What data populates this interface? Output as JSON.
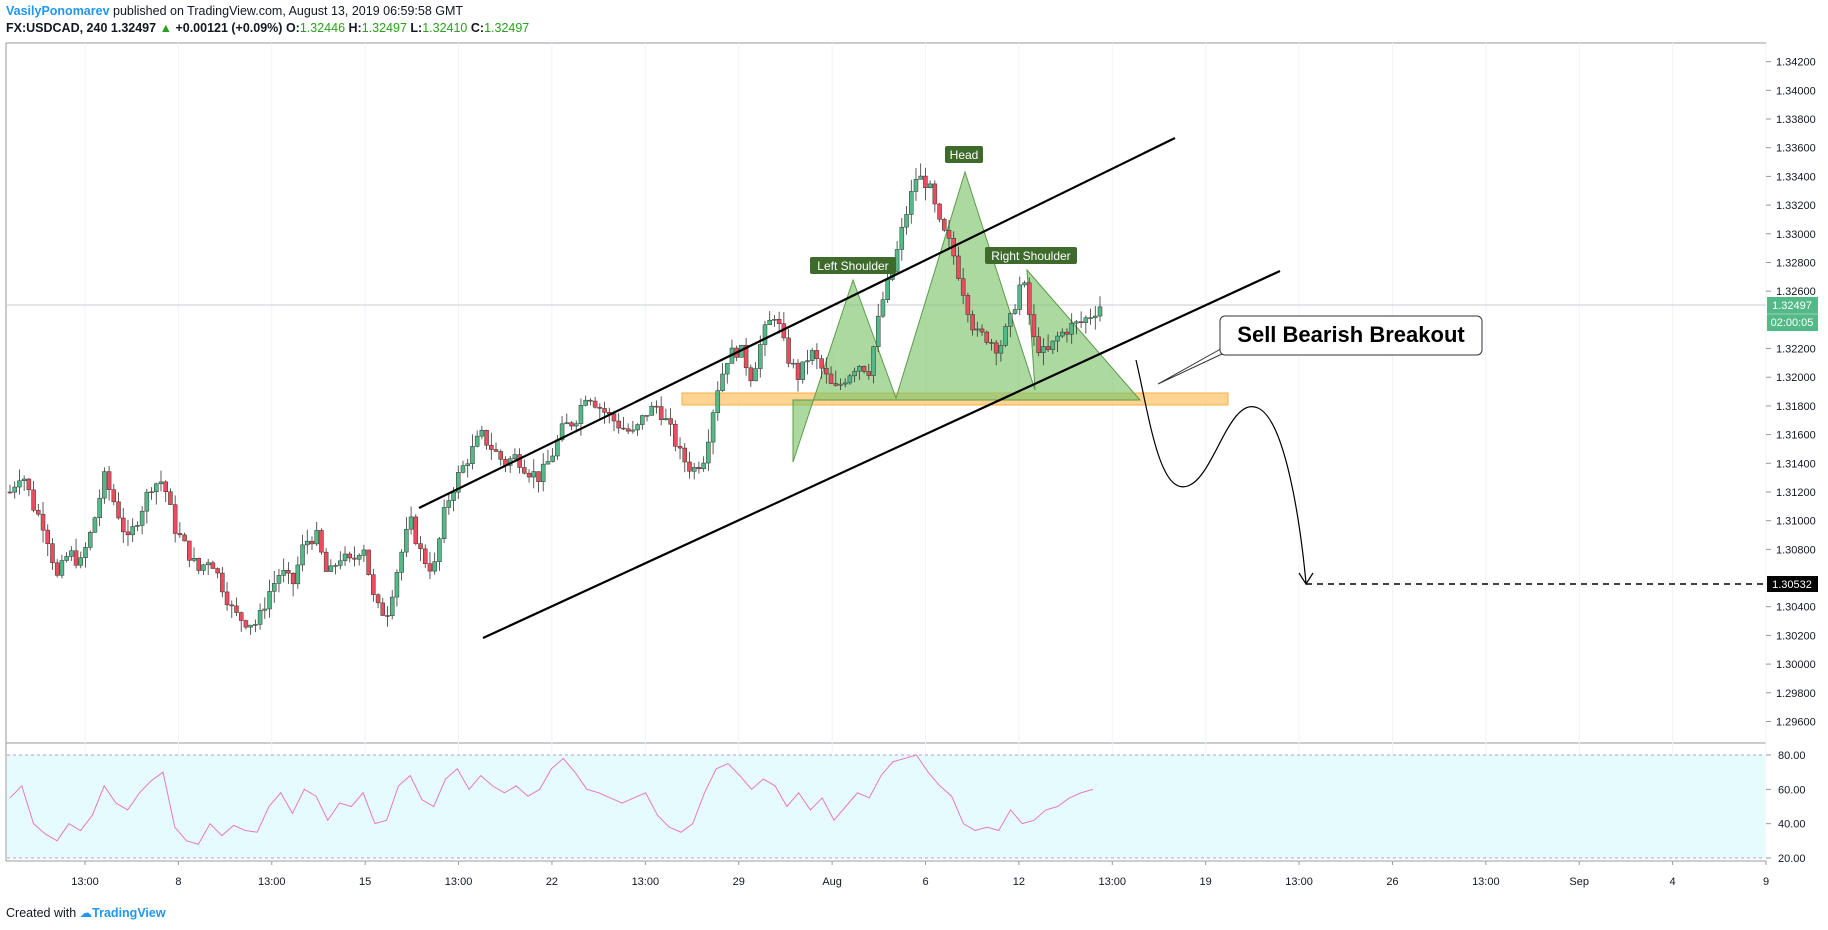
{
  "header": {
    "author": "VasilyPonomarev",
    "published_text": "published on TradingView.com, August 13, 2019 06:59:58 GMT",
    "symbol": "FX:USDCAD, 240",
    "last": "1.32497",
    "change": "+0.00121 (+0.09%)",
    "open_label": "O:",
    "open": "1.32446",
    "high_label": "H:",
    "high": "1.32497",
    "low_label": "L:",
    "low": "1.32410",
    "close_label": "C:",
    "close": "1.32497"
  },
  "footer": {
    "created_with": "Created with",
    "brand": "TradingView"
  },
  "colors": {
    "up": "#53b987",
    "down": "#eb4d5c",
    "pattern_fill": "#7ec46c",
    "zone_fill": "#ffcc80",
    "rsi_bg": "#e6fbfd",
    "rsi_line": "#e879c0",
    "price_label_bg": "#53b987",
    "target_label_bg": "#000000"
  },
  "chart_data": {
    "type": "candlestick",
    "instrument": "FX:USDCAD",
    "timeframe": "240",
    "x_labels": [
      "13:00",
      "8",
      "13:00",
      "15",
      "13:00",
      "22",
      "13:00",
      "29",
      "Aug",
      "6",
      "12",
      "13:00",
      "19",
      "13:00",
      "26",
      "13:00",
      "Sep",
      "4",
      "9"
    ],
    "y_labels": [
      "1.34200",
      "1.34000",
      "1.33800",
      "1.33600",
      "1.33400",
      "1.33200",
      "1.33000",
      "1.32800",
      "1.32600",
      "1.32200",
      "1.32000",
      "1.31800",
      "1.31600",
      "1.31400",
      "1.31200",
      "1.31000",
      "1.30800",
      "1.30400",
      "1.30200",
      "1.30000",
      "1.29800",
      "1.29600"
    ],
    "ylim": [
      1.2945,
      1.3433
    ],
    "current_price": "1.32497",
    "countdown": "02:00:05",
    "target_price": "1.30532",
    "annotations": {
      "head": "Head",
      "left_shoulder": "Left Shoulder",
      "right_shoulder": "Right Shoulder",
      "callout": "Sell Bearish Breakout"
    },
    "price_path": [
      [
        0,
        1.312
      ],
      [
        5,
        1.3135
      ],
      [
        10,
        1.311
      ],
      [
        15,
        1.3095
      ],
      [
        20,
        1.306
      ],
      [
        25,
        1.3078
      ],
      [
        30,
        1.307
      ],
      [
        35,
        1.3095
      ],
      [
        40,
        1.313
      ],
      [
        45,
        1.311
      ],
      [
        50,
        1.3085
      ],
      [
        55,
        1.3105
      ],
      [
        60,
        1.3125
      ],
      [
        65,
        1.3128
      ],
      [
        70,
        1.3095
      ],
      [
        75,
        1.308
      ],
      [
        80,
        1.3065
      ],
      [
        85,
        1.3075
      ],
      [
        90,
        1.3055
      ],
      [
        95,
        1.3035
      ],
      [
        100,
        1.303
      ],
      [
        105,
        1.3028
      ],
      [
        110,
        1.305
      ],
      [
        115,
        1.3065
      ],
      [
        120,
        1.3055
      ],
      [
        125,
        1.3085
      ],
      [
        130,
        1.309
      ],
      [
        135,
        1.306
      ],
      [
        140,
        1.3075
      ],
      [
        145,
        1.307
      ],
      [
        150,
        1.3085
      ],
      [
        155,
        1.304
      ],
      [
        160,
        1.3035
      ],
      [
        165,
        1.307
      ],
      [
        170,
        1.31
      ],
      [
        175,
        1.3075
      ],
      [
        180,
        1.3065
      ],
      [
        185,
        1.311
      ],
      [
        190,
        1.313
      ],
      [
        195,
        1.3145
      ],
      [
        200,
        1.316
      ],
      [
        205,
        1.315
      ],
      [
        210,
        1.314
      ],
      [
        215,
        1.3145
      ],
      [
        220,
        1.3135
      ],
      [
        225,
        1.313
      ],
      [
        230,
        1.3145
      ],
      [
        235,
        1.3165
      ],
      [
        240,
        1.317
      ],
      [
        245,
        1.319
      ],
      [
        250,
        1.318
      ],
      [
        255,
        1.3172
      ],
      [
        260,
        1.3165
      ],
      [
        265,
        1.316
      ],
      [
        270,
        1.3175
      ],
      [
        275,
        1.318
      ],
      [
        280,
        1.3165
      ],
      [
        285,
        1.3145
      ],
      [
        290,
        1.3135
      ],
      [
        295,
        1.3145
      ],
      [
        300,
        1.319
      ],
      [
        305,
        1.3215
      ],
      [
        310,
        1.322
      ],
      [
        315,
        1.32
      ],
      [
        320,
        1.323
      ],
      [
        325,
        1.3245
      ],
      [
        330,
        1.3215
      ],
      [
        335,
        1.32
      ],
      [
        340,
        1.3218
      ],
      [
        345,
        1.3205
      ],
      [
        350,
        1.319
      ],
      [
        355,
        1.32
      ],
      [
        360,
        1.321
      ],
      [
        365,
        1.3205
      ],
      [
        370,
        1.325
      ],
      [
        375,
        1.3275
      ],
      [
        380,
        1.331
      ],
      [
        385,
        1.334
      ],
      [
        390,
        1.3335
      ],
      [
        395,
        1.3305
      ],
      [
        400,
        1.329
      ],
      [
        405,
        1.326
      ],
      [
        410,
        1.323
      ],
      [
        415,
        1.3228
      ],
      [
        420,
        1.322
      ],
      [
        425,
        1.324
      ],
      [
        430,
        1.327
      ],
      [
        435,
        1.3225
      ],
      [
        440,
        1.3215
      ],
      [
        445,
        1.3228
      ],
      [
        450,
        1.3235
      ],
      [
        455,
        1.3238
      ],
      [
        460,
        1.3245
      ],
      [
        463,
        1.325
      ]
    ],
    "rsi": {
      "levels": [
        80,
        20
      ],
      "ticks": [
        "80.00",
        "60.00",
        "40.00",
        "20.00"
      ],
      "ylim": [
        15,
        85
      ],
      "values": [
        [
          0,
          55
        ],
        [
          5,
          62
        ],
        [
          10,
          40
        ],
        [
          15,
          34
        ],
        [
          20,
          30
        ],
        [
          25,
          40
        ],
        [
          30,
          36
        ],
        [
          35,
          45
        ],
        [
          40,
          62
        ],
        [
          45,
          52
        ],
        [
          50,
          48
        ],
        [
          55,
          58
        ],
        [
          60,
          65
        ],
        [
          65,
          70
        ],
        [
          70,
          38
        ],
        [
          75,
          30
        ],
        [
          80,
          28
        ],
        [
          85,
          40
        ],
        [
          90,
          33
        ],
        [
          95,
          39
        ],
        [
          100,
          36
        ],
        [
          105,
          35
        ],
        [
          110,
          50
        ],
        [
          115,
          58
        ],
        [
          120,
          46
        ],
        [
          125,
          60
        ],
        [
          130,
          56
        ],
        [
          135,
          42
        ],
        [
          140,
          52
        ],
        [
          145,
          50
        ],
        [
          150,
          58
        ],
        [
          155,
          40
        ],
        [
          160,
          42
        ],
        [
          165,
          62
        ],
        [
          170,
          68
        ],
        [
          175,
          54
        ],
        [
          180,
          50
        ],
        [
          185,
          66
        ],
        [
          190,
          72
        ],
        [
          195,
          60
        ],
        [
          200,
          68
        ],
        [
          205,
          62
        ],
        [
          210,
          58
        ],
        [
          215,
          62
        ],
        [
          220,
          56
        ],
        [
          225,
          60
        ],
        [
          230,
          72
        ],
        [
          235,
          78
        ],
        [
          240,
          70
        ],
        [
          245,
          60
        ],
        [
          250,
          58
        ],
        [
          255,
          55
        ],
        [
          260,
          52
        ],
        [
          265,
          55
        ],
        [
          270,
          58
        ],
        [
          275,
          45
        ],
        [
          280,
          38
        ],
        [
          285,
          35
        ],
        [
          290,
          40
        ],
        [
          295,
          58
        ],
        [
          300,
          72
        ],
        [
          305,
          75
        ],
        [
          310,
          68
        ],
        [
          315,
          60
        ],
        [
          320,
          66
        ],
        [
          325,
          62
        ],
        [
          330,
          50
        ],
        [
          335,
          58
        ],
        [
          340,
          48
        ],
        [
          345,
          55
        ],
        [
          350,
          42
        ],
        [
          355,
          50
        ],
        [
          360,
          58
        ],
        [
          365,
          55
        ],
        [
          370,
          68
        ],
        [
          375,
          76
        ],
        [
          380,
          78
        ],
        [
          385,
          80
        ],
        [
          390,
          70
        ],
        [
          395,
          62
        ],
        [
          400,
          56
        ],
        [
          405,
          40
        ],
        [
          410,
          36
        ],
        [
          415,
          38
        ],
        [
          420,
          36
        ],
        [
          425,
          48
        ],
        [
          430,
          40
        ],
        [
          435,
          42
        ],
        [
          440,
          48
        ],
        [
          445,
          50
        ],
        [
          450,
          55
        ],
        [
          455,
          58
        ],
        [
          460,
          60
        ]
      ]
    }
  }
}
